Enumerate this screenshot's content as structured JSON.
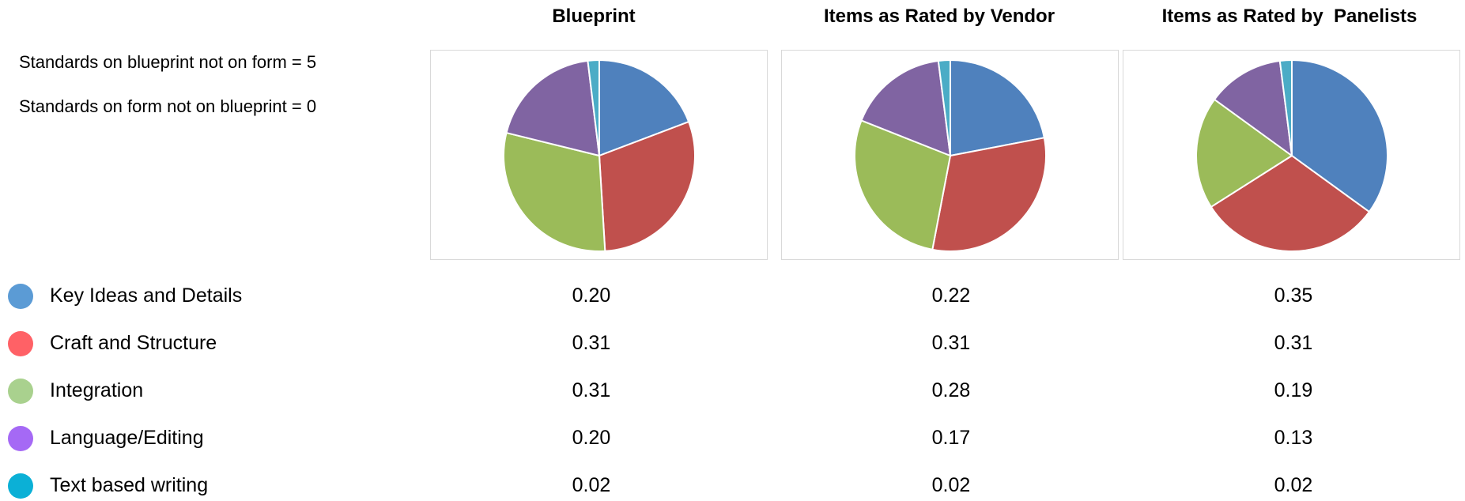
{
  "notes": [
    "Standards on blueprint not on form = 5",
    "Standards on form not on blueprint = 0"
  ],
  "legend": [
    {
      "label": "Key Ideas and Details",
      "dot_color": "#5b9bd5"
    },
    {
      "label": "Craft and Structure",
      "dot_color": "#ff6166"
    },
    {
      "label": "Integration",
      "dot_color": "#a9d18e"
    },
    {
      "label": "Language/Editing",
      "dot_color": "#a569f5"
    },
    {
      "label": "Text based writing",
      "dot_color": "#0bb0d6"
    }
  ],
  "chart_data": [
    {
      "type": "pie",
      "title": "Blueprint",
      "categories": [
        "Key Ideas and Details",
        "Craft and Structure",
        "Integration",
        "Language/Editing",
        "Text based writing"
      ],
      "values": [
        0.2,
        0.31,
        0.31,
        0.2,
        0.02
      ],
      "value_labels": [
        "0.20",
        "0.31",
        "0.31",
        "0.20",
        "0.02"
      ],
      "colors": [
        "#4f81bd",
        "#c0504d",
        "#9bbb59",
        "#8064a2",
        "#4bacc6"
      ]
    },
    {
      "type": "pie",
      "title": "Items as Rated by Vendor",
      "categories": [
        "Key Ideas and Details",
        "Craft and Structure",
        "Integration",
        "Language/Editing",
        "Text based writing"
      ],
      "values": [
        0.22,
        0.31,
        0.28,
        0.17,
        0.02
      ],
      "value_labels": [
        "0.22",
        "0.31",
        "0.28",
        "0.17",
        "0.02"
      ],
      "colors": [
        "#4f81bd",
        "#c0504d",
        "#9bbb59",
        "#8064a2",
        "#4bacc6"
      ]
    },
    {
      "type": "pie",
      "title": "Items as Rated by  Panelists",
      "categories": [
        "Key Ideas and Details",
        "Craft and Structure",
        "Integration",
        "Language/Editing",
        "Text based writing"
      ],
      "values": [
        0.35,
        0.31,
        0.19,
        0.13,
        0.02
      ],
      "value_labels": [
        "0.35",
        "0.31",
        "0.19",
        "0.13",
        "0.02"
      ],
      "colors": [
        "#4f81bd",
        "#c0504d",
        "#9bbb59",
        "#8064a2",
        "#4bacc6"
      ]
    }
  ]
}
